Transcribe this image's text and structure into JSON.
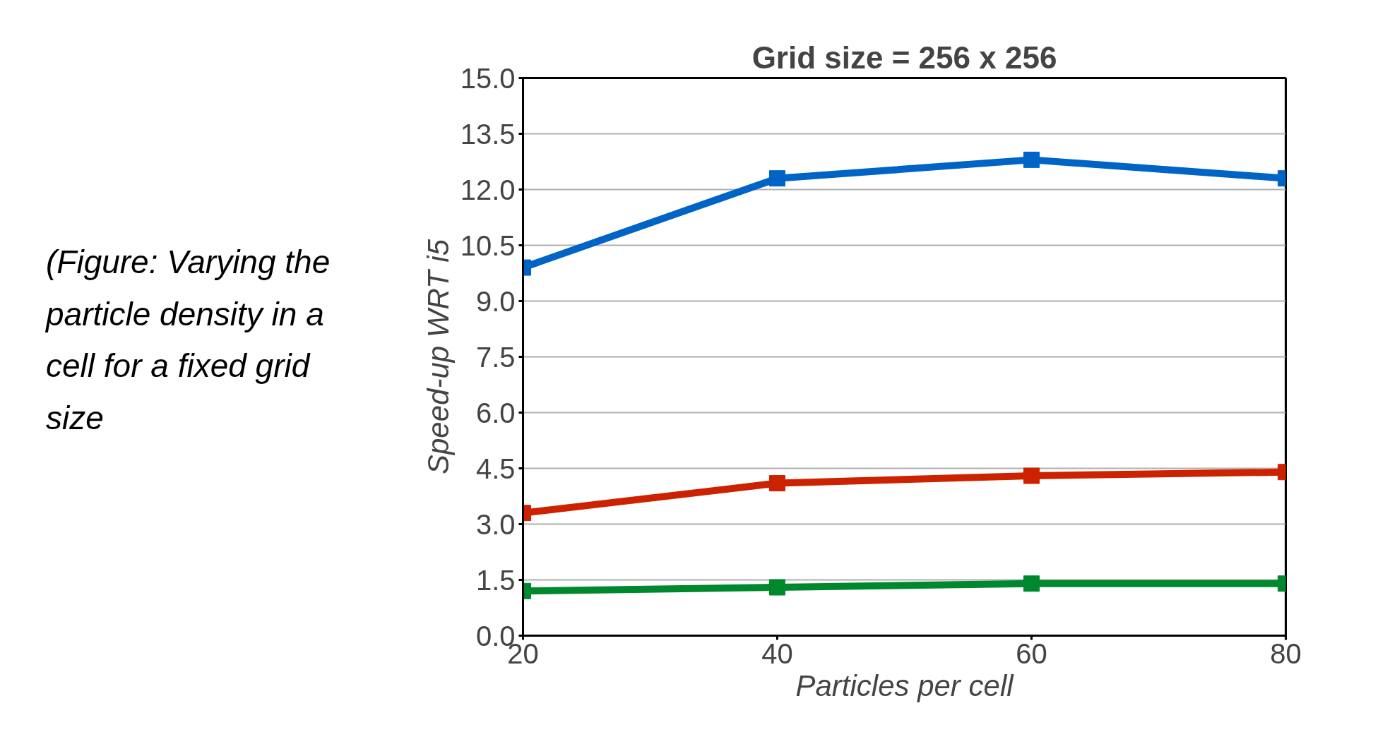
{
  "chart_data": {
    "type": "line",
    "title": "Grid size = 256 x 256",
    "xlabel": "Particles per cell",
    "ylabel": "Speed-up WRT i5",
    "annotations": [
      "(Figure: Varying the particle density in a cell for a fixed grid size"
    ],
    "x": [
      20,
      40,
      60,
      80
    ],
    "series": [
      {
        "color": "#0063c6",
        "values": [
          9.9,
          12.3,
          12.8,
          12.3
        ]
      },
      {
        "color": "#cc2200",
        "values": [
          3.3,
          4.1,
          4.3,
          4.4
        ]
      },
      {
        "color": "#00882e",
        "values": [
          1.2,
          1.3,
          1.4,
          1.4
        ]
      }
    ],
    "xlim": [
      20,
      80
    ],
    "xticks": [
      20,
      40,
      60,
      80
    ],
    "ylim": [
      0,
      15
    ],
    "yticks": [
      {
        "value": 0,
        "label": "0.0"
      },
      {
        "value": 1.5,
        "label": "1.5"
      },
      {
        "value": 3,
        "label": "3.0"
      },
      {
        "value": 4.5,
        "label": "4.5"
      },
      {
        "value": 6,
        "label": "6.0"
      },
      {
        "value": 7.5,
        "label": "7.5"
      },
      {
        "value": 9,
        "label": "9.0"
      },
      {
        "value": 10.5,
        "label": "10.5"
      },
      {
        "value": 12,
        "label": "12.0"
      },
      {
        "value": 13.5,
        "label": "13.5"
      },
      {
        "value": 15,
        "label": "15.0"
      }
    ],
    "grid": "y",
    "marker": "square",
    "line_style": "solid"
  }
}
